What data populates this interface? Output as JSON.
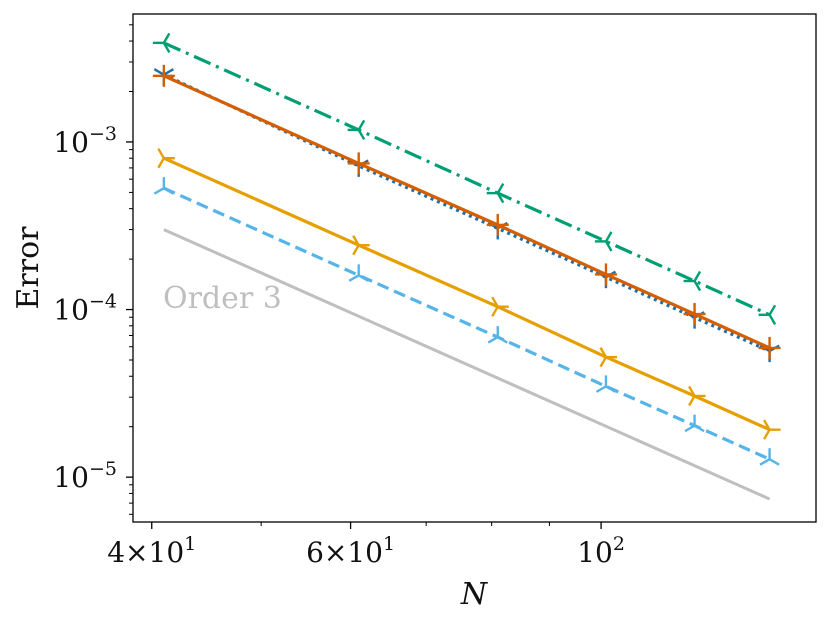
{
  "chart_data": {
    "type": "line",
    "title": "",
    "xlabel": "N",
    "ylabel": "Error",
    "xscale": "log",
    "yscale": "log",
    "xlim": [
      38.5,
      155
    ],
    "ylim": [
      5.4e-06,
      0.0058
    ],
    "grid": false,
    "legend": "none",
    "x_ticks": [
      {
        "value": 40,
        "base": "4",
        "exp": "1",
        "times": "×10"
      },
      {
        "value": 60,
        "base": "6",
        "exp": "1",
        "times": "×10"
      },
      {
        "value": 100,
        "base": "",
        "exp": "2",
        "times": "10"
      }
    ],
    "x_minor_ticks": [
      50,
      70,
      80,
      90
    ],
    "y_ticks": [
      {
        "value": 0.001,
        "exp": "−3"
      },
      {
        "value": 0.0001,
        "exp": "−4"
      },
      {
        "value": 1e-05,
        "exp": "−5"
      }
    ],
    "series": [
      {
        "color": "#009E73",
        "dash": "18,6,3,6",
        "marker": "tri-left",
        "x": [
          41,
          61,
          81,
          101,
          121,
          141
        ],
        "y": [
          0.0039,
          0.00118,
          0.000495,
          0.000255,
          0.000148,
          9.3e-05
        ]
      },
      {
        "color": "#1f6fa8",
        "dash": "3,4",
        "marker": "tri-down",
        "x": [
          41,
          61,
          81,
          101,
          121,
          141
        ],
        "y": [
          0.00252,
          0.00072,
          0.000305,
          0.000156,
          8.95e-05,
          5.65e-05
        ]
      },
      {
        "color": "#D55E00",
        "dash": "",
        "marker": "plus",
        "x": [
          41,
          61,
          81,
          101,
          121,
          141
        ],
        "y": [
          0.00248,
          0.000745,
          0.00032,
          0.000162,
          9.4e-05,
          5.9e-05
        ]
      },
      {
        "color": "#E69F00",
        "dash": "",
        "marker": "tri-right",
        "x": [
          41,
          61,
          81,
          101,
          121,
          141
        ],
        "y": [
          0.0008,
          0.000242,
          0.000104,
          5.2e-05,
          3.05e-05,
          1.92e-05
        ]
      },
      {
        "color": "#56B4E9",
        "dash": "12,6",
        "marker": "tri-up",
        "x": [
          41,
          61,
          81,
          101,
          121,
          141
        ],
        "y": [
          0.00053,
          0.00016,
          6.85e-05,
          3.48e-05,
          2.03e-05,
          1.28e-05
        ]
      }
    ],
    "reference": {
      "label": "Order 3",
      "color": "#bfbfbf",
      "x": [
        41,
        141
      ],
      "y": [
        0.0003,
        7.4e-06
      ]
    }
  }
}
